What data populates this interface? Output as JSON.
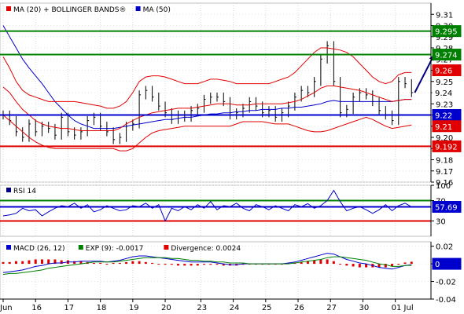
{
  "chart_data": [
    {
      "type": "line",
      "panel": "price",
      "legend": [
        {
          "label": "MA (20) + BOLLINGER BANDS®",
          "color": "#e00000"
        },
        {
          "label": "MA (50)",
          "color": "#0000cc"
        }
      ],
      "ylim": [
        9.16,
        9.32
      ],
      "yticks": [
        9.31,
        9.3,
        9.29,
        9.28,
        9.27,
        9.26,
        9.25,
        9.24,
        9.23,
        9.22,
        9.21,
        9.2,
        9.19,
        9.18,
        9.17,
        9.16
      ],
      "ytick_labels": [
        "9.31",
        "9.30",
        "9.29",
        "9.28",
        "9.27",
        "9.26",
        "9.25",
        "9.24",
        "9.23",
        "9.22",
        "9.21",
        "9.20",
        "9.19",
        "9.18",
        "9.17",
        "9.16"
      ],
      "hlines": [
        {
          "value": 9.295,
          "label": "9.295",
          "color": "#008000",
          "box": "#008000"
        },
        {
          "value": 9.274,
          "label": "9.274",
          "color": "#008000",
          "box": "#008000"
        },
        {
          "value": 9.22,
          "label": "9.22",
          "color": "#0000cc",
          "box": "#0000cc"
        },
        {
          "value": 9.192,
          "label": "9.192",
          "color": "#e00000",
          "box": "#e00000"
        }
      ],
      "badges": [
        {
          "value": 9.26,
          "label": "9.26",
          "color": "#e00000"
        },
        {
          "value": 9.24,
          "label": "9.24",
          "color": "#ffffff",
          "text_color": "#000000"
        },
        {
          "value": 9.21,
          "label": "9.21",
          "color": "#e00000"
        }
      ],
      "arrow": {
        "from": [
          127,
          9.24
        ],
        "to": [
          133,
          9.274
        ],
        "color": "#000080"
      },
      "x": [
        0,
        2,
        4,
        6,
        8,
        10,
        12,
        14,
        16,
        18,
        20,
        22,
        24,
        26,
        28,
        30,
        32,
        34,
        36,
        38,
        40,
        42,
        44,
        46,
        48,
        50,
        52,
        54,
        56,
        58,
        60,
        62,
        64,
        66,
        68,
        70,
        72,
        74,
        76,
        78,
        80,
        82,
        84,
        86,
        88,
        90,
        92,
        94,
        96,
        98,
        100,
        102,
        104,
        106,
        108,
        110,
        112,
        114,
        116,
        118,
        120,
        122,
        124,
        126
      ],
      "series": [
        {
          "key": "close",
          "color": "#000000",
          "values": [
            9.22,
            9.215,
            9.205,
            9.2,
            9.212,
            9.205,
            9.21,
            9.208,
            9.202,
            9.218,
            9.205,
            9.202,
            9.205,
            9.215,
            9.218,
            9.21,
            9.205,
            9.198,
            9.2,
            9.21,
            9.212,
            9.238,
            9.242,
            9.236,
            9.228,
            9.222,
            9.216,
            9.22,
            9.218,
            9.224,
            9.226,
            9.234,
            9.236,
            9.236,
            9.232,
            9.22,
            9.222,
            9.226,
            9.232,
            9.228,
            9.222,
            9.224,
            9.218,
            9.222,
            9.228,
            9.236,
            9.242,
            9.24,
            9.25,
            9.27,
            9.282,
            9.25,
            9.222,
            9.225,
            9.236,
            9.24,
            9.238,
            9.232,
            9.224,
            9.22,
            9.215,
            9.25,
            9.248,
            9.24
          ]
        },
        {
          "key": "ma50",
          "color": "#0000cc",
          "values": [
            9.3,
            9.29,
            9.28,
            9.27,
            9.262,
            9.255,
            9.248,
            9.24,
            9.232,
            9.226,
            9.22,
            9.215,
            9.212,
            9.21,
            9.208,
            9.208,
            9.208,
            9.208,
            9.209,
            9.21,
            9.211,
            9.212,
            9.213,
            9.214,
            9.215,
            9.216,
            9.216,
            9.217,
            9.218,
            9.218,
            9.219,
            9.22,
            9.221,
            9.221,
            9.222,
            9.222,
            9.223,
            9.223,
            9.224,
            9.224,
            9.225,
            9.225,
            9.225,
            9.226,
            9.226,
            9.227,
            9.227,
            9.228,
            9.229,
            9.23,
            9.232,
            9.233,
            9.232,
            9.232,
            9.232,
            9.232,
            9.232,
            9.232,
            9.232,
            9.232,
            9.232,
            9.233,
            9.234,
            9.234
          ]
        },
        {
          "key": "bb_upper",
          "color": "#e00000",
          "values": [
            9.272,
            9.262,
            9.25,
            9.242,
            9.238,
            9.236,
            9.234,
            9.232,
            9.232,
            9.232,
            9.232,
            9.232,
            9.231,
            9.23,
            9.229,
            9.228,
            9.226,
            9.226,
            9.228,
            9.232,
            9.24,
            9.25,
            9.254,
            9.255,
            9.255,
            9.254,
            9.252,
            9.25,
            9.248,
            9.248,
            9.248,
            9.25,
            9.252,
            9.252,
            9.251,
            9.25,
            9.248,
            9.248,
            9.248,
            9.248,
            9.248,
            9.248,
            9.25,
            9.252,
            9.254,
            9.258,
            9.264,
            9.27,
            9.276,
            9.28,
            9.28,
            9.279,
            9.278,
            9.276,
            9.272,
            9.266,
            9.26,
            9.254,
            9.25,
            9.248,
            9.25,
            9.256,
            9.258,
            9.258
          ]
        },
        {
          "key": "bb_middle",
          "color": "#e00000",
          "values": [
            9.245,
            9.24,
            9.232,
            9.225,
            9.22,
            9.215,
            9.212,
            9.21,
            9.209,
            9.208,
            9.208,
            9.207,
            9.206,
            9.206,
            9.206,
            9.206,
            9.206,
            9.206,
            9.208,
            9.212,
            9.215,
            9.218,
            9.22,
            9.222,
            9.223,
            9.224,
            9.225,
            9.226,
            9.226,
            9.226,
            9.227,
            9.228,
            9.229,
            9.23,
            9.23,
            9.23,
            9.229,
            9.229,
            9.229,
            9.23,
            9.23,
            9.23,
            9.23,
            9.23,
            9.231,
            9.232,
            9.234,
            9.237,
            9.24,
            9.244,
            9.246,
            9.246,
            9.245,
            9.244,
            9.243,
            9.242,
            9.24,
            9.238,
            9.236,
            9.234,
            9.232,
            9.233,
            9.234,
            9.234
          ]
        },
        {
          "key": "bb_lower",
          "color": "#e00000",
          "values": [
            9.22,
            9.215,
            9.21,
            9.205,
            9.2,
            9.196,
            9.193,
            9.191,
            9.19,
            9.19,
            9.19,
            9.19,
            9.19,
            9.19,
            9.19,
            9.19,
            9.19,
            9.19,
            9.188,
            9.188,
            9.19,
            9.195,
            9.2,
            9.204,
            9.206,
            9.207,
            9.208,
            9.209,
            9.21,
            9.21,
            9.21,
            9.21,
            9.21,
            9.21,
            9.21,
            9.21,
            9.212,
            9.214,
            9.214,
            9.214,
            9.214,
            9.213,
            9.212,
            9.212,
            9.212,
            9.21,
            9.208,
            9.206,
            9.205,
            9.205,
            9.206,
            9.208,
            9.21,
            9.212,
            9.214,
            9.216,
            9.218,
            9.216,
            9.213,
            9.21,
            9.208,
            9.209,
            9.21,
            9.211
          ]
        }
      ]
    },
    {
      "type": "line",
      "panel": "rsi",
      "legend": [
        {
          "label": "RSI 14",
          "color": "#000080"
        }
      ],
      "ylim": [
        0,
        100
      ],
      "yticks": [
        100,
        70,
        30
      ],
      "ytick_labels": [
        "100",
        "70",
        "30"
      ],
      "hlines": [
        {
          "value": 70,
          "color": "#008000"
        },
        {
          "value": 30,
          "color": "#e00000"
        }
      ],
      "current": {
        "value": 57.69,
        "label": "57.69",
        "color": "#0000cc"
      },
      "x": [
        0,
        2,
        4,
        6,
        8,
        10,
        12,
        14,
        16,
        18,
        20,
        22,
        24,
        26,
        28,
        30,
        32,
        34,
        36,
        38,
        40,
        42,
        44,
        46,
        48,
        50,
        52,
        54,
        56,
        58,
        60,
        62,
        64,
        66,
        68,
        70,
        72,
        74,
        76,
        78,
        80,
        82,
        84,
        86,
        88,
        90,
        92,
        94,
        96,
        98,
        100,
        102,
        104,
        106,
        108,
        110,
        112,
        114,
        116,
        118,
        120,
        122,
        124,
        126
      ],
      "series": [
        {
          "key": "rsi",
          "color": "#0000cc",
          "values": [
            40,
            42,
            45,
            55,
            50,
            52,
            40,
            48,
            55,
            60,
            58,
            65,
            55,
            62,
            48,
            52,
            60,
            55,
            50,
            52,
            60,
            58,
            65,
            55,
            62,
            30,
            55,
            50,
            58,
            52,
            62,
            55,
            68,
            52,
            60,
            58,
            65,
            55,
            50,
            62,
            58,
            52,
            60,
            55,
            50,
            62,
            58,
            64,
            55,
            60,
            70,
            90,
            68,
            50,
            55,
            58,
            52,
            45,
            52,
            62,
            50,
            60,
            65,
            57.69
          ]
        }
      ]
    },
    {
      "type": "bar",
      "panel": "macd",
      "legend": [
        {
          "label": "MACD (26, 12)",
          "color": "#0000cc"
        },
        {
          "label": "EXP (9): -0.0017",
          "color": "#008000"
        },
        {
          "label": "Divergence: 0.0024",
          "color": "#e00000"
        }
      ],
      "ylim": [
        -0.04,
        0.025
      ],
      "yticks": [
        0.02,
        0,
        -0.02,
        -0.04
      ],
      "ytick_labels": [
        "0.02",
        "0",
        "-0.02",
        "-0.04"
      ],
      "current": {
        "value": 0,
        "label": "0",
        "color": "#0000cc"
      },
      "x_labels": [
        {
          "x": 0,
          "label": "Jun"
        },
        {
          "x": 10,
          "label": "16"
        },
        {
          "x": 20,
          "label": "17"
        },
        {
          "x": 30,
          "label": "18"
        },
        {
          "x": 40,
          "label": "19"
        },
        {
          "x": 50,
          "label": "20"
        },
        {
          "x": 61,
          "label": "23"
        },
        {
          "x": 71,
          "label": "24"
        },
        {
          "x": 81,
          "label": "25"
        },
        {
          "x": 91,
          "label": "26"
        },
        {
          "x": 101,
          "label": "27"
        },
        {
          "x": 111,
          "label": "30"
        },
        {
          "x": 121,
          "label": "01 Jul"
        }
      ],
      "x": [
        0,
        2,
        4,
        6,
        8,
        10,
        12,
        14,
        16,
        18,
        20,
        22,
        24,
        26,
        28,
        30,
        32,
        34,
        36,
        38,
        40,
        42,
        44,
        46,
        48,
        50,
        52,
        54,
        56,
        58,
        60,
        62,
        64,
        66,
        68,
        70,
        72,
        74,
        76,
        78,
        80,
        82,
        84,
        86,
        88,
        90,
        92,
        94,
        96,
        98,
        100,
        102,
        104,
        106,
        108,
        110,
        112,
        114,
        116,
        118,
        120,
        122,
        124,
        126
      ],
      "series": [
        {
          "key": "macd",
          "color": "#0000cc",
          "values": [
            -0.01,
            -0.009,
            -0.008,
            -0.007,
            -0.005,
            -0.003,
            -0.002,
            0,
            0.001,
            0.001,
            0.002,
            0.002,
            0.003,
            0.003,
            0.003,
            0.003,
            0.002,
            0.003,
            0.004,
            0.006,
            0.008,
            0.009,
            0.009,
            0.008,
            0.007,
            0.006,
            0.005,
            0.004,
            0.003,
            0.002,
            0.002,
            0.002,
            0.002,
            0.001,
            0,
            -0.001,
            -0.001,
            0,
            0,
            0,
            0,
            0,
            0,
            0,
            0.001,
            0.002,
            0.004,
            0.006,
            0.008,
            0.01,
            0.012,
            0.011,
            0.008,
            0.005,
            0.003,
            0.001,
            0,
            -0.002,
            -0.004,
            -0.005,
            -0.006,
            -0.004,
            -0.002,
            -0.001
          ]
        },
        {
          "key": "exp",
          "color": "#008000",
          "values": [
            -0.012,
            -0.011,
            -0.011,
            -0.01,
            -0.009,
            -0.008,
            -0.007,
            -0.005,
            -0.004,
            -0.003,
            -0.002,
            -0.001,
            0,
            0.001,
            0.002,
            0.002,
            0.002,
            0.002,
            0.003,
            0.004,
            0.005,
            0.006,
            0.007,
            0.007,
            0.007,
            0.007,
            0.006,
            0.006,
            0.005,
            0.004,
            0.004,
            0.003,
            0.003,
            0.002,
            0.002,
            0.001,
            0.001,
            0.001,
            0,
            0,
            0,
            0,
            0,
            0,
            0,
            0.001,
            0.002,
            0.003,
            0.004,
            0.005,
            0.007,
            0.008,
            0.008,
            0.007,
            0.006,
            0.005,
            0.004,
            0.002,
            0,
            -0.001,
            -0.003,
            -0.003,
            -0.002,
            -0.0017
          ]
        },
        {
          "key": "divergence",
          "color": "#e00000",
          "values": [
            0.002,
            0.002,
            0.003,
            0.003,
            0.004,
            0.005,
            0.005,
            0.005,
            0.005,
            0.004,
            0.004,
            0.003,
            0.003,
            0.002,
            0.001,
            0.001,
            0,
            0.001,
            0.001,
            0.002,
            0.003,
            0.003,
            0.002,
            0.001,
            0,
            -0.001,
            -0.001,
            -0.002,
            -0.002,
            -0.002,
            -0.002,
            -0.001,
            -0.001,
            -0.001,
            -0.002,
            -0.002,
            -0.002,
            -0.001,
            0,
            0,
            0,
            0,
            0,
            0,
            0.001,
            0.001,
            0.002,
            0.003,
            0.004,
            0.005,
            0.005,
            0.003,
            0,
            -0.002,
            -0.003,
            -0.004,
            -0.004,
            -0.004,
            -0.004,
            -0.004,
            -0.003,
            -0.001,
            0.0015,
            0.0024
          ]
        }
      ]
    }
  ]
}
